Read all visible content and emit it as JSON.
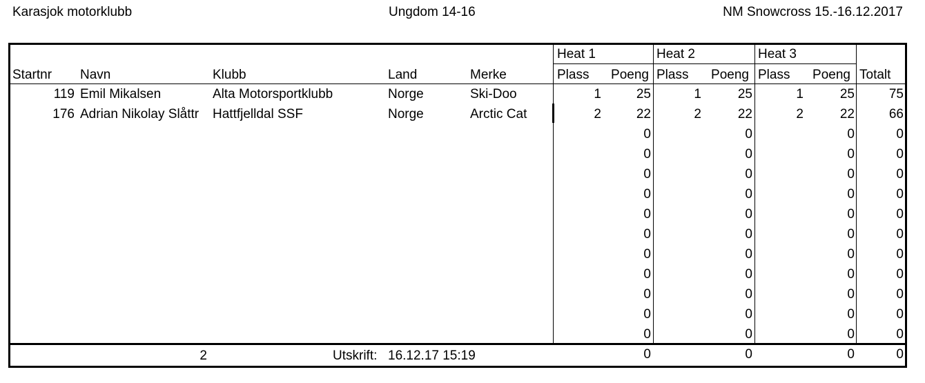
{
  "header": {
    "club": "Karasjok motorklubb",
    "class": "Ungdom 14-16",
    "event": "NM Snowcross 15.-16.12.2017"
  },
  "columns": {
    "startnr": "Startnr",
    "navn": "Navn",
    "klubb": "Klubb",
    "land": "Land",
    "merke": "Merke",
    "heat1": "Heat 1",
    "heat2": "Heat 2",
    "heat3": "Heat 3",
    "plass": "Plass",
    "poeng": "Poeng",
    "totalt": "Totalt"
  },
  "results": [
    {
      "startnr": "119",
      "navn": "Emil Mikalsen",
      "klubb": "Alta Motorsportklubb",
      "land": "Norge",
      "merke": "Ski-Doo",
      "h1_plass": "1",
      "h1_poeng": "25",
      "h2_plass": "1",
      "h2_poeng": "25",
      "h3_plass": "1",
      "h3_poeng": "25",
      "totalt": "75"
    },
    {
      "startnr": "176",
      "navn": "Adrian Nikolay Slåttr",
      "klubb": "Hattfjelldal SSF",
      "land": "Norge",
      "merke": "Arctic Cat",
      "h1_plass": "2",
      "h1_poeng": "22",
      "h2_plass": "2",
      "h2_poeng": "22",
      "h3_plass": "2",
      "h3_poeng": "22",
      "totalt": "66"
    },
    {
      "h1_poeng": "0",
      "h2_poeng": "0",
      "h3_poeng": "0",
      "totalt": "0"
    },
    {
      "h1_poeng": "0",
      "h2_poeng": "0",
      "h3_poeng": "0",
      "totalt": "0"
    },
    {
      "h1_poeng": "0",
      "h2_poeng": "0",
      "h3_poeng": "0",
      "totalt": "0"
    },
    {
      "h1_poeng": "0",
      "h2_poeng": "0",
      "h3_poeng": "0",
      "totalt": "0"
    },
    {
      "h1_poeng": "0",
      "h2_poeng": "0",
      "h3_poeng": "0",
      "totalt": "0"
    },
    {
      "h1_poeng": "0",
      "h2_poeng": "0",
      "h3_poeng": "0",
      "totalt": "0"
    },
    {
      "h1_poeng": "0",
      "h2_poeng": "0",
      "h3_poeng": "0",
      "totalt": "0"
    },
    {
      "h1_poeng": "0",
      "h2_poeng": "0",
      "h3_poeng": "0",
      "totalt": "0"
    },
    {
      "h1_poeng": "0",
      "h2_poeng": "0",
      "h3_poeng": "0",
      "totalt": "0"
    },
    {
      "h1_poeng": "0",
      "h2_poeng": "0",
      "h3_poeng": "0",
      "totalt": "0"
    },
    {
      "h1_poeng": "0",
      "h2_poeng": "0",
      "h3_poeng": "0",
      "totalt": "0"
    },
    {
      "h1_poeng": "0",
      "h2_poeng": "0",
      "h3_poeng": "0",
      "totalt": "0"
    }
  ],
  "footer": {
    "page": "2",
    "printed_label": "Utskrift:",
    "printed_value": "16.12.17 15:19"
  }
}
